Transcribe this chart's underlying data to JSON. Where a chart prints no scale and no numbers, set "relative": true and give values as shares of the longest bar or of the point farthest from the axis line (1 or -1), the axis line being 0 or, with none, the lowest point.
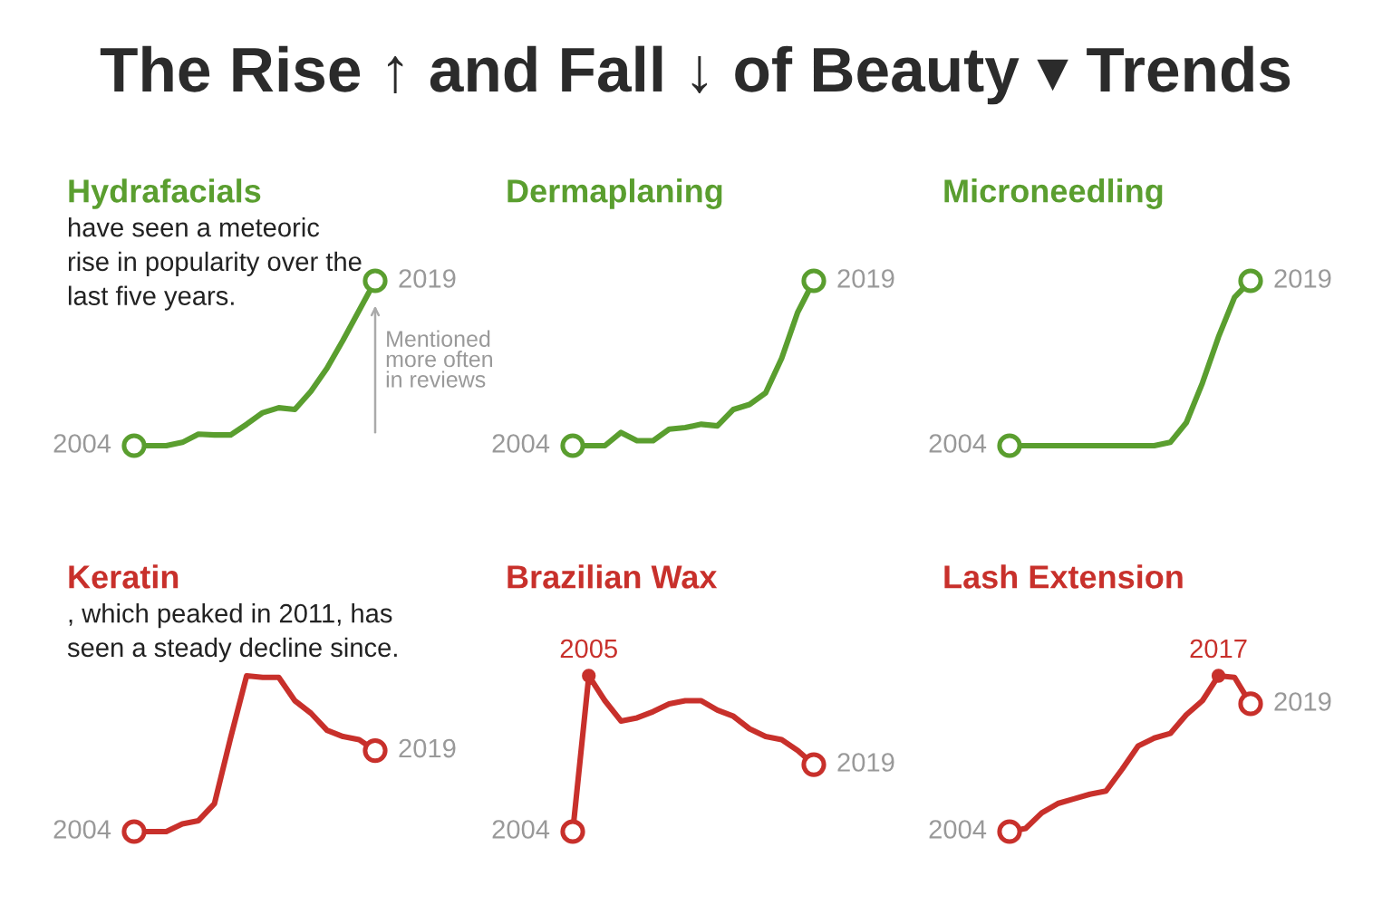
{
  "chart_data": [
    {
      "type": "other",
      "title": "The Rise ↑ and Fall ↓ of Beauty ▾ Trends"
    },
    {
      "type": "line",
      "relative": true,
      "title": "Hydrafacials",
      "subtitle": "have seen a meteoric rise in popularity over the last five years.",
      "categories": [
        null,
        null,
        null,
        null,
        null,
        null,
        null,
        null,
        null,
        null,
        null,
        null,
        null,
        null,
        null,
        null
      ],
      "series": [
        {
          "color": "#5a9e2f",
          "values": [
            0,
            0,
            0,
            0.02,
            0.07,
            0.065,
            0.065,
            0.13,
            0.2,
            0.23,
            0.22,
            0.33,
            0.47,
            0.64,
            0.82,
            1
          ]
        }
      ],
      "annotations": [
        "2004",
        "2019",
        "Mentioned more often in reviews"
      ]
    },
    {
      "type": "line",
      "relative": true,
      "title": "Dermaplaning",
      "categories": [
        null,
        null,
        null,
        null,
        null,
        null,
        null,
        null,
        null,
        null,
        null,
        null,
        null,
        null,
        null,
        null
      ],
      "series": [
        {
          "color": "#5a9e2f",
          "values": [
            0,
            0,
            0,
            0.08,
            0.03,
            0.03,
            0.1,
            0.11,
            0.13,
            0.12,
            0.22,
            0.25,
            0.32,
            0.53,
            0.81,
            1
          ]
        }
      ],
      "annotations": [
        "2004",
        "2019"
      ]
    },
    {
      "type": "line",
      "relative": true,
      "title": "Microneedling",
      "categories": [
        null,
        null,
        null,
        null,
        null,
        null,
        null,
        null,
        null,
        null,
        null,
        null,
        null,
        null,
        null,
        null
      ],
      "series": [
        {
          "color": "#5a9e2f",
          "values": [
            0,
            0,
            0,
            0,
            0,
            0,
            0,
            0,
            0,
            0,
            0.02,
            0.14,
            0.38,
            0.66,
            0.9,
            1
          ]
        }
      ],
      "annotations": [
        "2004",
        "2019"
      ]
    },
    {
      "type": "line",
      "relative": true,
      "title": "Keratin",
      "subtitle": ", which peaked in 2011, has seen a steady decline since.",
      "categories": [
        null,
        null,
        null,
        null,
        null,
        null,
        null,
        null,
        null,
        null,
        null,
        null,
        null,
        null,
        null,
        null
      ],
      "series": [
        {
          "color": "#c8302b",
          "values": [
            0,
            0,
            0,
            0.05,
            0.07,
            0.18,
            0.6,
            1,
            0.99,
            0.99,
            0.84,
            0.76,
            0.65,
            0.61,
            0.59,
            0.52
          ]
        }
      ],
      "annotations": [
        "2004",
        "2019"
      ]
    },
    {
      "type": "line",
      "relative": true,
      "title": "Brazilian Wax",
      "categories": [
        null,
        null,
        null,
        null,
        null,
        null,
        null,
        null,
        null,
        null,
        null,
        null,
        null,
        null,
        null,
        null
      ],
      "series": [
        {
          "color": "#c8302b",
          "values": [
            0,
            1,
            0.84,
            0.71,
            0.73,
            0.77,
            0.82,
            0.84,
            0.84,
            0.78,
            0.74,
            0.66,
            0.61,
            0.59,
            0.52,
            0.43
          ]
        }
      ],
      "annotations": [
        "2004",
        "2019",
        {
          "text": "2005",
          "y": 1
        }
      ]
    },
    {
      "type": "line",
      "relative": true,
      "title": "Lash Extension",
      "categories": [
        null,
        null,
        null,
        null,
        null,
        null,
        null,
        null,
        null,
        null,
        null,
        null,
        null,
        null,
        null,
        null
      ],
      "series": [
        {
          "color": "#c8302b",
          "values": [
            0,
            0.02,
            0.12,
            0.18,
            0.21,
            0.24,
            0.26,
            0.4,
            0.55,
            0.6,
            0.63,
            0.75,
            0.84,
            1,
            0.99,
            0.82
          ]
        }
      ],
      "annotations": [
        "2004",
        "2019",
        {
          "text": "2017",
          "y": 1
        }
      ]
    }
  ]
}
